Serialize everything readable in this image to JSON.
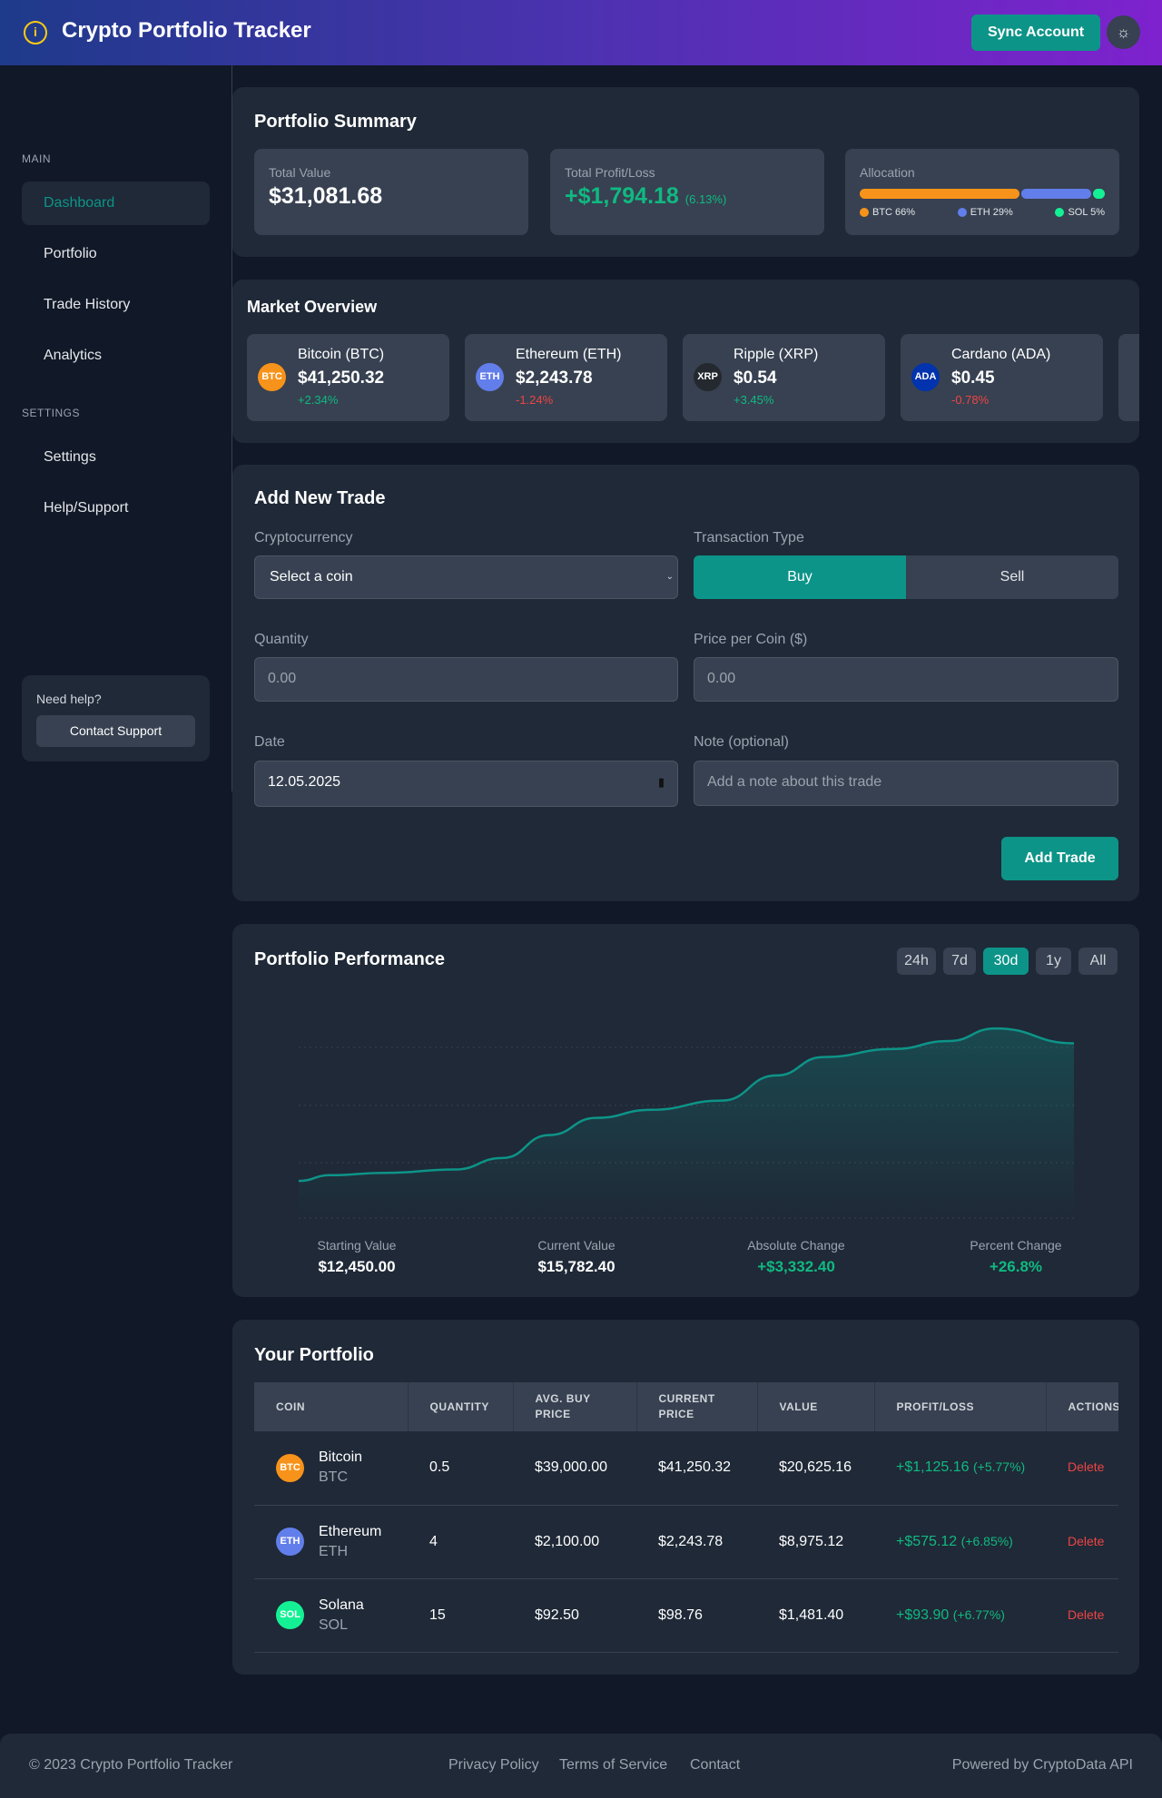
{
  "header": {
    "title": "Crypto Portfolio Tracker",
    "logo_icon": "info-circle-icon",
    "sync_label": "Sync Account",
    "theme_icon": "sun-icon"
  },
  "sidebar": {
    "main_label": "MAIN",
    "items": [
      {
        "label": "Dashboard",
        "active": true
      },
      {
        "label": "Portfolio"
      },
      {
        "label": "Trade History"
      },
      {
        "label": "Analytics"
      }
    ],
    "settings_label": "SETTINGS",
    "settings_items": [
      {
        "label": "Settings"
      },
      {
        "label": "Help/Support"
      }
    ],
    "help": {
      "title": "Need help?",
      "button": "Contact Support"
    }
  },
  "summary": {
    "title": "Portfolio Summary",
    "total_value_label": "Total Value",
    "total_value": "$31,081.68",
    "pl_label": "Total Profit/Loss",
    "pl_value": "+$1,794.18",
    "pl_percent": "(6.13%)",
    "allocation_label": "Allocation",
    "allocation": [
      {
        "label": "BTC 66%",
        "percent": 66,
        "color": "#f7931a"
      },
      {
        "label": "ETH 29%",
        "percent": 29,
        "color": "#627eea"
      },
      {
        "label": "SOL 5%",
        "percent": 5,
        "color": "#14f195"
      }
    ]
  },
  "market": {
    "title": "Market Overview",
    "coins": [
      {
        "name": "Bitcoin (BTC)",
        "symbol": "BTC",
        "price": "$41,250.32",
        "change": "+2.34%",
        "up": true,
        "color": "#f7931a"
      },
      {
        "name": "Ethereum (ETH)",
        "symbol": "ETH",
        "price": "$2,243.78",
        "change": "-1.24%",
        "up": false,
        "color": "#627eea"
      },
      {
        "name": "Ripple (XRP)",
        "symbol": "XRP",
        "price": "$0.54",
        "change": "+3.45%",
        "up": true,
        "color": "#23292f"
      },
      {
        "name": "Cardano (ADA)",
        "symbol": "ADA",
        "price": "$0.45",
        "change": "-0.78%",
        "up": false,
        "color": "#0033ad"
      }
    ]
  },
  "trade": {
    "title": "Add New Trade",
    "crypto_label": "Cryptocurrency",
    "crypto_value": "Select a coin",
    "type_label": "Transaction Type",
    "buy": "Buy",
    "sell": "Sell",
    "selected_type": "Buy",
    "qty_label": "Quantity",
    "qty_placeholder": "0.00",
    "price_label": "Price per Coin ($)",
    "price_placeholder": "0.00",
    "date_label": "Date",
    "date_value": "12.05.2025",
    "note_label": "Note (optional)",
    "note_placeholder": "Add a note about this trade",
    "submit": "Add Trade"
  },
  "performance": {
    "title": "Portfolio Performance",
    "ranges": [
      "24h",
      "7d",
      "30d",
      "1y",
      "All"
    ],
    "active_range": "30d",
    "stats": [
      {
        "label": "Starting Value",
        "value": "$12,450.00"
      },
      {
        "label": "Current Value",
        "value": "$15,782.40"
      },
      {
        "label": "Absolute Change",
        "value": "+$3,332.40"
      },
      {
        "label": "Percent Change",
        "value": "+26.8%"
      }
    ]
  },
  "chart_data": {
    "type": "area",
    "title": "",
    "xlabel": "",
    "ylabel": "",
    "grid": true,
    "ylim": [
      11530,
      16650
    ],
    "color": "#0d9488",
    "values": [
      12450,
      12589,
      12644,
      12728,
      13005,
      13561,
      13977,
      14172,
      14394,
      15005,
      15449,
      15644,
      15838,
      16143,
      15782
    ],
    "x": [
      0,
      4,
      11,
      20,
      26,
      32,
      38,
      45,
      54,
      61,
      67,
      76,
      83,
      89,
      99
    ]
  },
  "portfolio": {
    "title": "Your Portfolio",
    "columns": [
      "COIN",
      "QUANTITY",
      "AVG. BUY PRICE",
      "CURRENT PRICE",
      "VALUE",
      "PROFIT/LOSS",
      "ACTIONS"
    ],
    "rows": [
      {
        "name": "Bitcoin",
        "symbol": "BTC",
        "color": "#f7931a",
        "qty": "0.5",
        "avg": "$39,000.00",
        "current": "$41,250.32",
        "value": "$20,625.16",
        "pl": "+$1,125.16",
        "pl_pct": "(+5.77%)",
        "action": "Delete"
      },
      {
        "name": "Ethereum",
        "symbol": "ETH",
        "color": "#627eea",
        "qty": "4",
        "avg": "$2,100.00",
        "current": "$2,243.78",
        "value": "$8,975.12",
        "pl": "+$575.12",
        "pl_pct": "(+6.85%)",
        "action": "Delete"
      },
      {
        "name": "Solana",
        "symbol": "SOL",
        "color": "#14f195",
        "qty": "15",
        "avg": "$92.50",
        "current": "$98.76",
        "value": "$1,481.40",
        "pl": "+$93.90",
        "pl_pct": "(+6.77%)",
        "action": "Delete"
      }
    ]
  },
  "footer": {
    "copyright": "© 2023 Crypto Portfolio Tracker",
    "links": [
      "Privacy Policy",
      "Terms of Service",
      "Contact"
    ],
    "powered": "Powered by CryptoData API"
  }
}
